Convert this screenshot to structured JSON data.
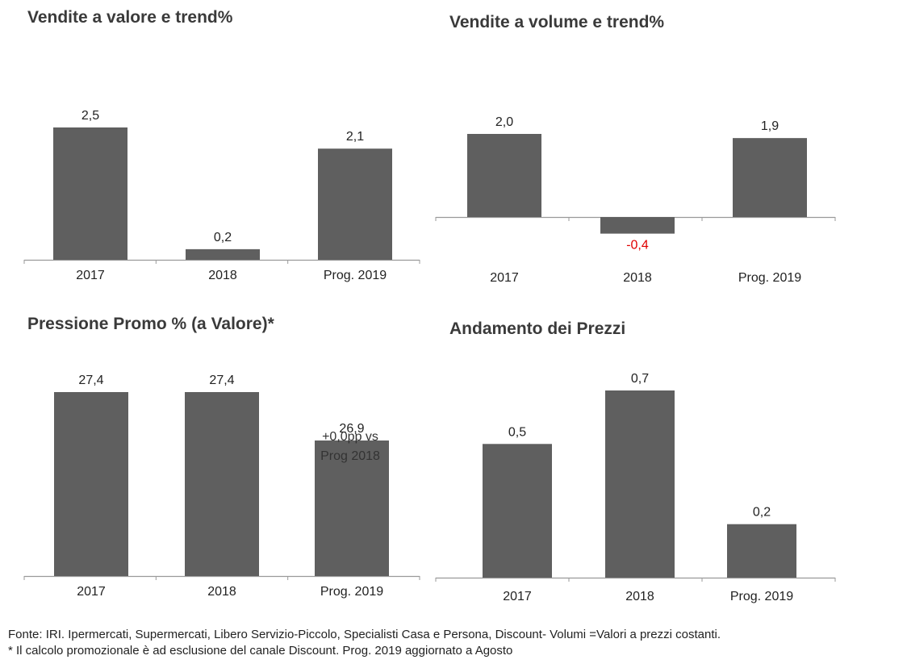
{
  "chart_data": [
    {
      "type": "bar",
      "title": "Vendite a valore e trend%",
      "categories": [
        "2017",
        "2018",
        "Prog. 2019"
      ],
      "values": [
        2.5,
        0.2,
        2.1
      ],
      "value_labels": [
        "2,5",
        "0,2",
        "2,1"
      ],
      "ylim": [
        0,
        2.5
      ],
      "color": "#5f5f5f"
    },
    {
      "type": "bar",
      "title": "Vendite a volume e trend%",
      "categories": [
        "2017",
        "2018",
        "Prog. 2019"
      ],
      "values": [
        2.0,
        -0.4,
        1.9
      ],
      "value_labels": [
        "2,0",
        "-0,4",
        "1,9"
      ],
      "ylim": [
        -0.4,
        2.0
      ],
      "color": "#5f5f5f",
      "negative_label_color": "#e00000"
    },
    {
      "type": "bar",
      "title": "Pressione Promo % (a Valore)*",
      "categories": [
        "2017",
        "2018",
        "Prog. 2019"
      ],
      "values": [
        27.4,
        27.4,
        26.9
      ],
      "value_labels": [
        "27,4",
        "27,4",
        "26,9"
      ],
      "annotation": [
        "+0,0pp vs",
        "Prog 2018"
      ],
      "ylim": [
        25.5,
        27.4
      ],
      "color": "#5f5f5f"
    },
    {
      "type": "bar",
      "title": "Andamento dei Prezzi",
      "categories": [
        "2017",
        "2018",
        "Prog. 2019"
      ],
      "values": [
        0.5,
        0.7,
        0.2
      ],
      "value_labels": [
        "0,5",
        "0,7",
        "0,2"
      ],
      "ylim": [
        0,
        0.7
      ],
      "color": "#5f5f5f"
    }
  ],
  "footnotes": [
    "Fonte: IRI. Ipermercati, Supermercati, Libero Servizio-Piccolo, Specialisti Casa e Persona, Discount-  Volumi =Valori a prezzi costanti.",
    "* Il calcolo promozionale è ad esclusione del canale Discount.  Prog. 2019 aggiornato a Agosto"
  ]
}
